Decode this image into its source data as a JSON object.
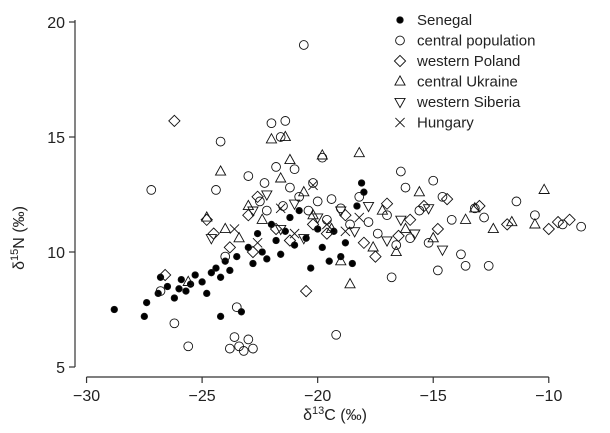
{
  "chart_data": {
    "type": "scatter",
    "xlabel_main": "δ",
    "xlabel_sup": "13",
    "xlabel_rest": "C (‰)",
    "ylabel_main": "δ",
    "ylabel_sup": "15",
    "ylabel_rest": "N (‰)",
    "xlim": [
      -30.5,
      -8
    ],
    "ylim": [
      5,
      20
    ],
    "xticks": [
      -30,
      -25,
      -20,
      -15,
      -10
    ],
    "yticks": [
      5,
      10,
      15,
      20
    ],
    "grid": false,
    "legend_position": "top-right",
    "series": [
      {
        "name": "Senegal",
        "marker": "filled-circle",
        "points": [
          [
            -28.8,
            7.5
          ],
          [
            -27.5,
            7.2
          ],
          [
            -27.4,
            7.8
          ],
          [
            -26.9,
            8.2
          ],
          [
            -26.5,
            8.5
          ],
          [
            -26.2,
            8.0
          ],
          [
            -26.0,
            8.4
          ],
          [
            -25.9,
            8.8
          ],
          [
            -25.7,
            8.3
          ],
          [
            -25.5,
            8.6
          ],
          [
            -25.3,
            9.0
          ],
          [
            -25.0,
            8.7
          ],
          [
            -24.8,
            8.2
          ],
          [
            -24.6,
            9.1
          ],
          [
            -24.4,
            9.3
          ],
          [
            -24.2,
            8.9
          ],
          [
            -24.0,
            9.6
          ],
          [
            -23.8,
            9.2
          ],
          [
            -23.5,
            9.8
          ],
          [
            -23.3,
            7.4
          ],
          [
            -23.0,
            10.2
          ],
          [
            -22.8,
            9.5
          ],
          [
            -22.6,
            10.8
          ],
          [
            -22.4,
            10.0
          ],
          [
            -22.2,
            9.7
          ],
          [
            -22.0,
            11.2
          ],
          [
            -21.8,
            10.5
          ],
          [
            -21.6,
            9.9
          ],
          [
            -21.4,
            10.9
          ],
          [
            -21.2,
            11.5
          ],
          [
            -21.0,
            10.3
          ],
          [
            -20.8,
            11.8
          ],
          [
            -20.5,
            10.6
          ],
          [
            -20.3,
            9.3
          ],
          [
            -20.0,
            11.0
          ],
          [
            -19.8,
            10.2
          ],
          [
            -19.5,
            9.6
          ],
          [
            -19.3,
            10.9
          ],
          [
            -19.0,
            9.8
          ],
          [
            -18.8,
            10.4
          ],
          [
            -18.5,
            9.5
          ],
          [
            -18.3,
            12.0
          ],
          [
            -18.1,
            13.0
          ],
          [
            -18.0,
            12.6
          ],
          [
            -24.2,
            7.2
          ],
          [
            -26.8,
            8.9
          ]
        ]
      },
      {
        "name": "central population",
        "marker": "open-circle",
        "points": [
          [
            -27.2,
            12.7
          ],
          [
            -26.8,
            8.3
          ],
          [
            -26.2,
            6.9
          ],
          [
            -25.6,
            5.9
          ],
          [
            -24.4,
            12.7
          ],
          [
            -24.2,
            14.8
          ],
          [
            -24.0,
            9.8
          ],
          [
            -23.8,
            5.8
          ],
          [
            -23.6,
            6.3
          ],
          [
            -23.5,
            7.6
          ],
          [
            -23.4,
            5.9
          ],
          [
            -23.2,
            5.7
          ],
          [
            -23.0,
            6.2
          ],
          [
            -22.8,
            5.8
          ],
          [
            -22.5,
            12.2
          ],
          [
            -22.3,
            13.0
          ],
          [
            -22.0,
            15.6
          ],
          [
            -21.8,
            13.7
          ],
          [
            -21.6,
            15.0
          ],
          [
            -21.4,
            15.7
          ],
          [
            -21.2,
            12.8
          ],
          [
            -21.0,
            13.6
          ],
          [
            -20.8,
            12.4
          ],
          [
            -20.6,
            19.0
          ],
          [
            -20.4,
            11.8
          ],
          [
            -20.2,
            13.0
          ],
          [
            -20.0,
            12.2
          ],
          [
            -19.8,
            14.1
          ],
          [
            -19.6,
            11.4
          ],
          [
            -19.4,
            12.3
          ],
          [
            -19.2,
            6.4
          ],
          [
            -19.0,
            11.9
          ],
          [
            -18.6,
            11.2
          ],
          [
            -18.2,
            12.4
          ],
          [
            -17.8,
            11.3
          ],
          [
            -17.4,
            10.8
          ],
          [
            -17.0,
            11.6
          ],
          [
            -16.8,
            8.9
          ],
          [
            -16.6,
            10.3
          ],
          [
            -16.4,
            13.5
          ],
          [
            -16.2,
            12.8
          ],
          [
            -16.0,
            10.6
          ],
          [
            -15.6,
            11.8
          ],
          [
            -15.2,
            10.4
          ],
          [
            -15.0,
            13.1
          ],
          [
            -14.8,
            9.2
          ],
          [
            -14.6,
            12.4
          ],
          [
            -14.2,
            11.4
          ],
          [
            -13.8,
            9.9
          ],
          [
            -13.6,
            9.4
          ],
          [
            -13.2,
            11.9
          ],
          [
            -12.8,
            11.5
          ],
          [
            -12.6,
            9.4
          ],
          [
            -11.4,
            12.2
          ],
          [
            -10.6,
            11.6
          ],
          [
            -9.4,
            11.2
          ],
          [
            -8.6,
            11.1
          ],
          [
            -23.0,
            13.3
          ],
          [
            -22.2,
            11.8
          ],
          [
            -21.5,
            12.0
          ]
        ]
      },
      {
        "name": "western Poland",
        "marker": "open-diamond",
        "points": [
          [
            -26.6,
            9.0
          ],
          [
            -26.2,
            15.7
          ],
          [
            -24.8,
            11.4
          ],
          [
            -24.5,
            10.8
          ],
          [
            -23.8,
            10.2
          ],
          [
            -23.0,
            11.6
          ],
          [
            -22.8,
            10.0
          ],
          [
            -22.6,
            12.4
          ],
          [
            -21.8,
            11.0
          ],
          [
            -21.2,
            10.5
          ],
          [
            -20.5,
            8.3
          ],
          [
            -20.2,
            11.2
          ],
          [
            -19.6,
            10.8
          ],
          [
            -18.8,
            11.6
          ],
          [
            -18.0,
            10.4
          ],
          [
            -17.5,
            9.8
          ],
          [
            -17.0,
            12.1
          ],
          [
            -16.5,
            10.7
          ],
          [
            -16.0,
            11.4
          ],
          [
            -15.4,
            12.0
          ],
          [
            -14.8,
            11.0
          ],
          [
            -14.4,
            12.3
          ],
          [
            -13.0,
            12.0
          ],
          [
            -11.8,
            11.2
          ],
          [
            -10.0,
            11.0
          ],
          [
            -9.6,
            11.3
          ],
          [
            -9.1,
            11.4
          ]
        ]
      },
      {
        "name": "central Ukraine",
        "marker": "open-triangle-up",
        "points": [
          [
            -25.6,
            8.7
          ],
          [
            -24.8,
            11.5
          ],
          [
            -24.2,
            13.5
          ],
          [
            -24.0,
            11.0
          ],
          [
            -23.4,
            10.6
          ],
          [
            -23.0,
            12.0
          ],
          [
            -22.4,
            11.4
          ],
          [
            -22.0,
            14.9
          ],
          [
            -21.6,
            13.2
          ],
          [
            -21.4,
            15.0
          ],
          [
            -21.2,
            14.0
          ],
          [
            -20.6,
            12.6
          ],
          [
            -20.2,
            11.6
          ],
          [
            -19.8,
            14.2
          ],
          [
            -19.4,
            11.0
          ],
          [
            -19.0,
            9.6
          ],
          [
            -18.6,
            8.6
          ],
          [
            -18.2,
            14.3
          ],
          [
            -17.6,
            10.2
          ],
          [
            -17.2,
            11.8
          ],
          [
            -16.6,
            10.0
          ],
          [
            -16.2,
            11.0
          ],
          [
            -15.6,
            12.6
          ],
          [
            -15.0,
            10.6
          ],
          [
            -13.6,
            11.4
          ],
          [
            -13.2,
            11.9
          ],
          [
            -12.4,
            11.0
          ],
          [
            -11.6,
            11.3
          ],
          [
            -10.6,
            11.2
          ],
          [
            -10.2,
            12.7
          ]
        ]
      },
      {
        "name": "western Siberia",
        "marker": "open-triangle-down",
        "points": [
          [
            -24.6,
            10.6
          ],
          [
            -22.8,
            11.8
          ],
          [
            -22.2,
            12.5
          ],
          [
            -21.6,
            11.0
          ],
          [
            -21.0,
            12.1
          ],
          [
            -20.6,
            10.6
          ],
          [
            -20.0,
            11.5
          ],
          [
            -19.0,
            11.8
          ],
          [
            -18.4,
            10.9
          ],
          [
            -17.8,
            12.0
          ],
          [
            -17.0,
            10.5
          ],
          [
            -16.4,
            11.4
          ],
          [
            -15.8,
            10.8
          ],
          [
            -15.2,
            11.9
          ],
          [
            -14.6,
            10.1
          ]
        ]
      },
      {
        "name": "Hungary",
        "marker": "cross",
        "points": [
          [
            -23.6,
            11.0
          ],
          [
            -22.6,
            10.4
          ],
          [
            -21.6,
            11.9
          ],
          [
            -21.0,
            10.8
          ],
          [
            -20.2,
            12.9
          ],
          [
            -19.6,
            11.2
          ],
          [
            -18.8,
            10.9
          ],
          [
            -18.2,
            11.5
          ]
        ]
      }
    ]
  }
}
